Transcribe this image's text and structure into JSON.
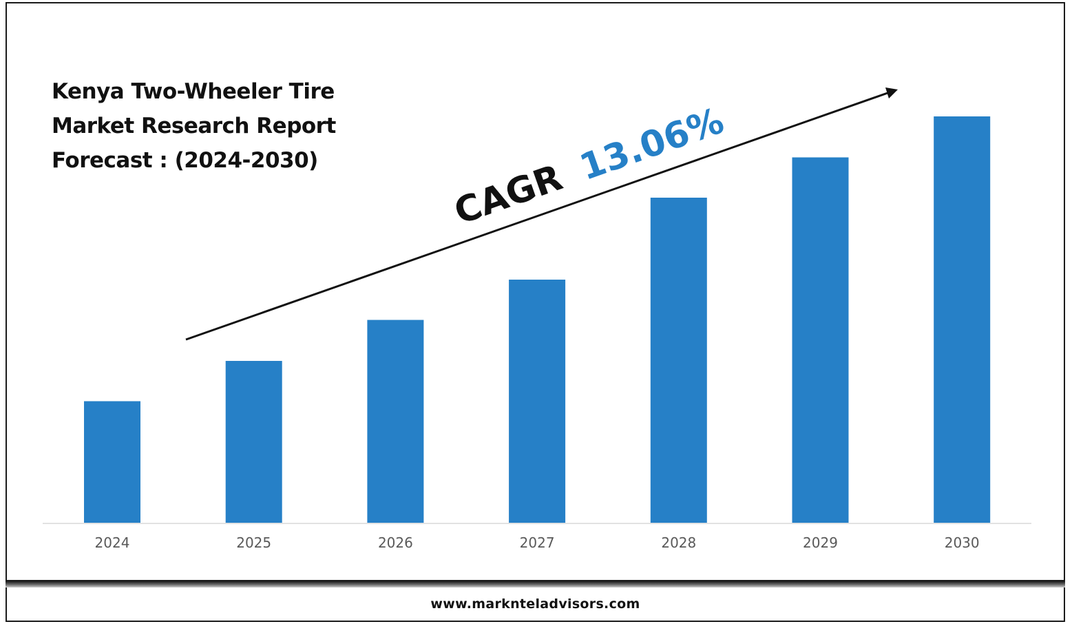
{
  "title_lines": [
    "Kenya Two-Wheeler Tire",
    "Market Research Report",
    "Forecast : (2024-2030)"
  ],
  "cagr": {
    "prefix": "CAGR",
    "value": "13.06%",
    "prefix_color": "#111111",
    "value_color": "#2680c7"
  },
  "footer": {
    "url": "www.marknteladvisors.com"
  },
  "chart_data": {
    "type": "bar",
    "categories": [
      "2024",
      "2025",
      "2026",
      "2027",
      "2028",
      "2029",
      "2030"
    ],
    "values": [
      178,
      237,
      297,
      356,
      476,
      535,
      595
    ],
    "ylim": [
      0,
      600
    ],
    "bar_color": "#2680c7",
    "axis_color": "#d9d9d9",
    "tick_label_color": "#595959",
    "grid": false,
    "legend": "none"
  }
}
